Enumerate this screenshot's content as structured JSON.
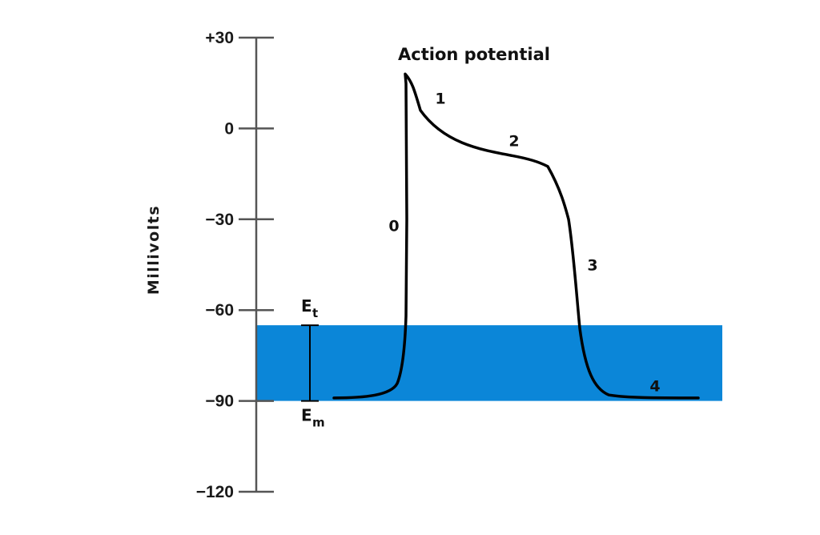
{
  "chart_data": {
    "type": "line",
    "title": "Action potential",
    "ylabel": "Millivolts",
    "ylim": [
      -120,
      30
    ],
    "yticks": [
      {
        "value": 30,
        "label": "+30"
      },
      {
        "value": 0,
        "label": "0"
      },
      {
        "value": -30,
        "label": "−30"
      },
      {
        "value": -60,
        "label": "−60"
      },
      {
        "value": -90,
        "label": "−90"
      },
      {
        "value": -120,
        "label": "−120"
      }
    ],
    "band": {
      "from": -65,
      "to": -90,
      "color": "#0b86d8"
    },
    "curve_color": "#000000",
    "markers": {
      "threshold": {
        "value": -65,
        "label": "E",
        "sub": "t"
      },
      "resting": {
        "value": -90,
        "label": "E",
        "sub": "m"
      }
    },
    "phases": [
      {
        "label": "0",
        "value": -32
      },
      {
        "label": "1",
        "value": 10
      },
      {
        "label": "2",
        "value": -4
      },
      {
        "label": "3",
        "value": -45
      },
      {
        "label": "4",
        "value": -85
      }
    ]
  }
}
